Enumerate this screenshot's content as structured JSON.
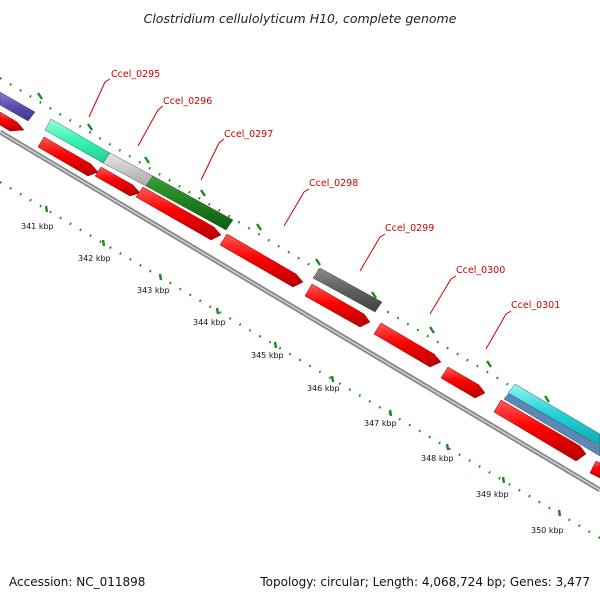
{
  "title": "Clostridium cellulolyticum H10, complete genome",
  "footer": {
    "accession": "Accession: NC_011898",
    "summary": "Topology: circular; Length: 4,068,724 bp; Genes: 3,477"
  },
  "colors": {
    "cds": "#ff0000",
    "backbone": "#8a8a8a",
    "label": "#cc0000",
    "ticks": "#1a8a1a"
  },
  "scale_labels": [
    "341 kbp",
    "342 kbp",
    "343 kbp",
    "344 kbp",
    "345 kbp",
    "346 kbp",
    "347 kbp",
    "348 kbp",
    "349 kbp",
    "350 kbp"
  ],
  "gene_labels": [
    "Ccel_0295",
    "Ccel_0296",
    "Ccel_0297",
    "Ccel_0298",
    "Ccel_0299",
    "Ccel_0300",
    "Ccel_0301"
  ]
}
